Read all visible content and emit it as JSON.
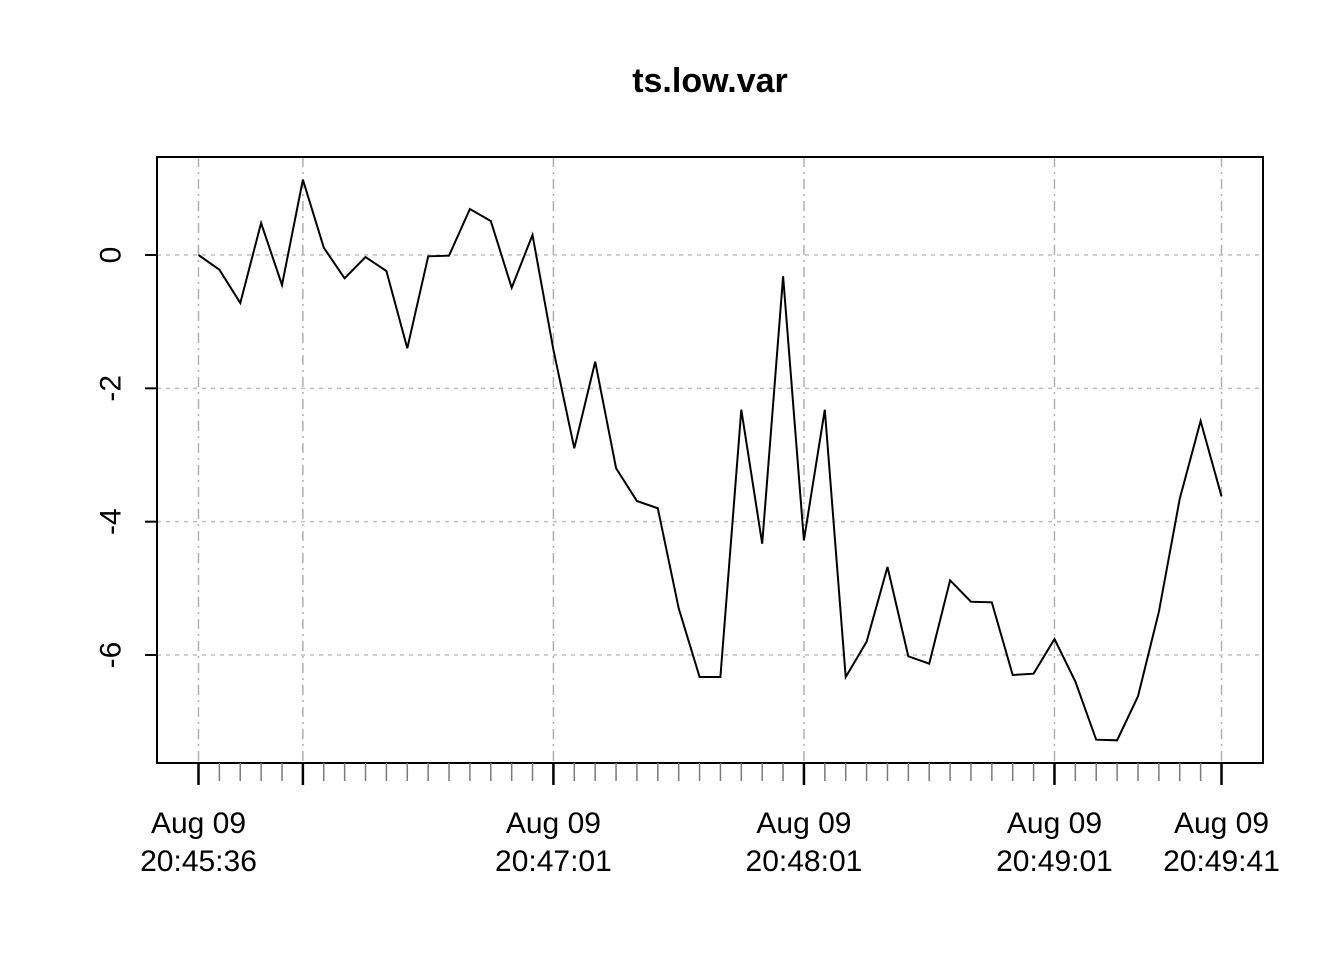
{
  "chart_data": {
    "type": "line",
    "title": "ts.low.var",
    "xlabel": "",
    "ylabel": "",
    "x_unit": "seconds, sampled every 5 s",
    "x_range": [
      "Aug 09 20:45:36",
      "Aug 09 20:49:41"
    ],
    "ylim": [
      -7.6,
      1.5
    ],
    "y_ticks": [
      0,
      -2,
      -4,
      -6
    ],
    "y_tick_labels": [
      "0",
      "-2",
      "-4",
      "-6"
    ],
    "grid": true,
    "series": [
      {
        "x": [
          "20:45:36",
          "20:45:41",
          "20:45:46",
          "20:45:51",
          "20:45:56",
          "20:46:01",
          "20:46:06",
          "20:46:11",
          "20:46:16",
          "20:46:21",
          "20:46:26",
          "20:46:31",
          "20:46:36",
          "20:46:41",
          "20:46:46",
          "20:46:51",
          "20:46:56",
          "20:47:01",
          "20:47:06",
          "20:47:11",
          "20:47:16",
          "20:47:21",
          "20:47:26",
          "20:47:31",
          "20:47:36",
          "20:47:41",
          "20:47:46",
          "20:47:51",
          "20:47:56",
          "20:48:01",
          "20:48:06",
          "20:48:11",
          "20:48:16",
          "20:48:21",
          "20:48:26",
          "20:48:31",
          "20:48:36",
          "20:48:41",
          "20:48:46",
          "20:48:51",
          "20:48:56",
          "20:49:01",
          "20:49:06",
          "20:49:11",
          "20:49:16",
          "20:49:21",
          "20:49:26",
          "20:49:31",
          "20:49:36",
          "20:49:41"
        ],
        "values": [
          0.0,
          -0.22,
          -0.72,
          0.48,
          -0.45,
          1.13,
          0.11,
          -0.35,
          -0.03,
          -0.24,
          -1.4,
          -0.02,
          -0.01,
          0.69,
          0.51,
          -0.49,
          0.3,
          -1.42,
          -2.9,
          -1.6,
          -3.2,
          -3.69,
          -3.8,
          -5.3,
          -6.33,
          -6.33,
          -2.32,
          -4.33,
          -0.32,
          -4.28,
          -2.32,
          -6.33,
          -5.8,
          -4.68,
          -6.02,
          -6.13,
          -4.88,
          -5.2,
          -5.21,
          -6.3,
          -6.28,
          -5.76,
          -6.4,
          -7.27,
          -7.28,
          -6.62,
          -5.35,
          -3.66,
          -2.49,
          -3.62
        ]
      }
    ],
    "x_ticks": [
      {
        "date": "Aug 09",
        "time": "20:45:36"
      },
      {
        "date": "Aug 09",
        "time": "20:47:01"
      },
      {
        "date": "Aug 09",
        "time": "20:48:01"
      },
      {
        "date": "Aug 09",
        "time": "20:49:01"
      },
      {
        "date": "Aug 09",
        "time": "20:49:41"
      }
    ],
    "x_major_grid_times": [
      "20:45:36",
      "20:46:01",
      "20:47:01",
      "20:48:01",
      "20:49:01",
      "20:49:41"
    ],
    "colors": {
      "line": "#000000",
      "grid": "#c0c0c0",
      "axis": "#000000"
    }
  }
}
